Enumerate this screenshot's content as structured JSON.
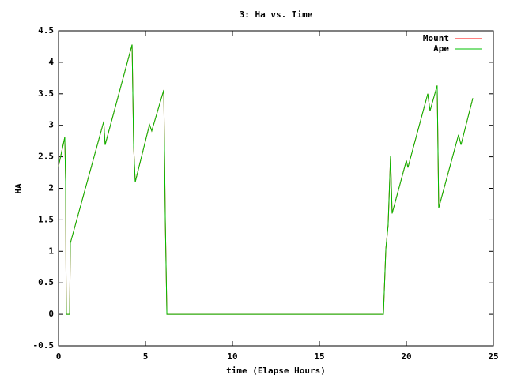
{
  "chart_data": {
    "type": "line",
    "title": "3: Ha vs. Time",
    "xlabel": "time (Elapse Hours)",
    "ylabel": "HA",
    "x": [
      0,
      0.36,
      0.41,
      0.43,
      0.45,
      0.64,
      0.68,
      2.6,
      2.68,
      4.23,
      4.32,
      4.41,
      5.23,
      5.36,
      6.05,
      6.14,
      6.23,
      18.68,
      18.82,
      18.95,
      19.09,
      19.18,
      20.0,
      20.09,
      21.23,
      21.36,
      21.77,
      21.86,
      23.0,
      23.14,
      23.82
    ],
    "series": [
      {
        "name": "Mount",
        "color": "#ff0000",
        "values": [
          2.35,
          2.81,
          2.1,
          0.73,
          0,
          0,
          1.13,
          3.06,
          2.69,
          4.28,
          2.66,
          2.1,
          3.01,
          2.91,
          3.56,
          1.48,
          0,
          0,
          1.04,
          1.41,
          2.51,
          1.6,
          2.44,
          2.33,
          3.5,
          3.23,
          3.63,
          1.69,
          2.85,
          2.69,
          3.43
        ]
      },
      {
        "name": "Ape",
        "color": "#00c000",
        "values": [
          2.35,
          2.81,
          2.1,
          0.73,
          0,
          0,
          1.13,
          3.06,
          2.69,
          4.28,
          2.66,
          2.1,
          3.01,
          2.91,
          3.56,
          1.48,
          0,
          0,
          1.04,
          1.41,
          2.51,
          1.6,
          2.44,
          2.33,
          3.5,
          3.23,
          3.63,
          1.69,
          2.85,
          2.69,
          3.43
        ]
      }
    ],
    "xlim": [
      0,
      25
    ],
    "xticks": [
      0,
      5,
      10,
      15,
      20,
      25
    ],
    "ylim": [
      -0.5,
      4.5
    ],
    "yticks": [
      -0.5,
      0,
      0.5,
      1,
      1.5,
      2,
      2.5,
      3,
      3.5,
      4,
      4.5
    ],
    "grid": false,
    "legend": "top-right"
  }
}
